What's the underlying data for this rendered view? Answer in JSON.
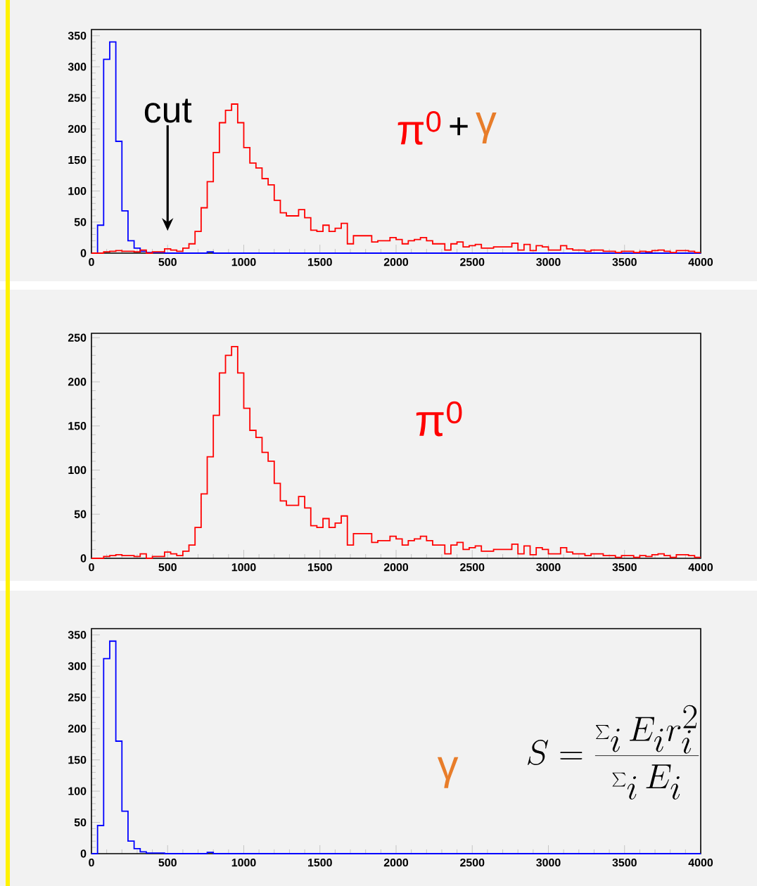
{
  "chart_data": [
    {
      "type": "histogram",
      "bins": [
        0,
        40,
        80,
        120,
        160,
        200,
        240,
        280,
        320,
        360,
        400,
        440,
        480,
        520,
        560,
        600,
        640,
        680,
        720,
        760,
        800,
        840,
        880,
        920,
        960,
        1000,
        1040,
        1080,
        1120,
        1160,
        1200,
        1240,
        1280,
        1320,
        1360,
        1400,
        1440,
        1480,
        1520,
        1560,
        1600,
        1640,
        1680,
        1720,
        1760,
        1800,
        1840,
        1880,
        1920,
        1960,
        2000,
        2040,
        2080,
        2120,
        2160,
        2200,
        2240,
        2280,
        2320,
        2360,
        2400,
        2440,
        2480,
        2520,
        2560,
        2600,
        2640,
        2680,
        2720,
        2760,
        2800,
        2840,
        2880,
        2920,
        2960,
        3000,
        3040,
        3080,
        3120,
        3160,
        3200,
        3240,
        3280,
        3320,
        3360,
        3400,
        3440,
        3480,
        3520,
        3560,
        3600,
        3640,
        3680,
        3720,
        3760,
        3800,
        3840,
        3880,
        3920,
        3960,
        4000
      ],
      "series": [
        {
          "color": "#0000ff",
          "values": [
            0,
            45,
            312,
            340,
            180,
            68,
            20,
            8,
            3,
            1,
            1,
            1,
            0,
            0,
            0,
            0,
            0,
            0,
            0,
            2,
            0,
            0,
            0,
            0,
            0,
            0,
            0,
            0,
            0,
            0,
            0,
            0,
            0,
            0,
            0,
            0,
            0,
            0,
            0,
            0,
            0,
            0,
            0,
            0,
            0,
            0,
            0,
            0,
            0,
            0,
            0,
            0,
            0,
            0,
            0,
            0,
            0,
            0,
            0,
            0,
            0,
            0,
            0,
            0,
            0,
            0,
            0,
            0,
            0,
            0,
            0,
            0,
            0,
            0,
            0,
            0,
            0,
            0,
            0,
            0,
            0,
            0,
            0,
            0,
            0,
            0,
            0,
            0,
            0,
            0,
            0,
            0,
            0,
            0,
            0,
            0,
            0,
            0,
            0,
            0
          ]
        },
        {
          "color": "#ff0000",
          "values": [
            0,
            0,
            2,
            3,
            4,
            3,
            3,
            2,
            5,
            0,
            2,
            2,
            7,
            5,
            3,
            8,
            15,
            35,
            73,
            115,
            162,
            210,
            230,
            240,
            210,
            170,
            145,
            137,
            120,
            110,
            85,
            65,
            60,
            60,
            70,
            57,
            37,
            35,
            45,
            35,
            40,
            48,
            15,
            28,
            28,
            28,
            18,
            20,
            20,
            25,
            22,
            15,
            20,
            22,
            25,
            20,
            15,
            15,
            5,
            15,
            18,
            10,
            12,
            14,
            8,
            8,
            10,
            10,
            10,
            16,
            5,
            14,
            4,
            12,
            10,
            5,
            5,
            12,
            7,
            5,
            5,
            3,
            5,
            5,
            3,
            3,
            1,
            3,
            3,
            1,
            3,
            2,
            4,
            5,
            3,
            1,
            4,
            4,
            3,
            1
          ]
        }
      ],
      "xlim": [
        0,
        4000
      ],
      "xticks": [
        0,
        500,
        1000,
        1500,
        2000,
        2500,
        3000,
        3500,
        4000
      ],
      "ylim": [
        0,
        360
      ],
      "yticks": [
        0,
        50,
        100,
        150,
        200,
        250,
        300,
        350
      ],
      "annotations": [
        "cut",
        "π$^{0}$",
        "+",
        "γ"
      ]
    },
    {
      "type": "histogram",
      "bins": [
        0,
        40,
        80,
        120,
        160,
        200,
        240,
        280,
        320,
        360,
        400,
        440,
        480,
        520,
        560,
        600,
        640,
        680,
        720,
        760,
        800,
        840,
        880,
        920,
        960,
        1000,
        1040,
        1080,
        1120,
        1160,
        1200,
        1240,
        1280,
        1320,
        1360,
        1400,
        1440,
        1480,
        1520,
        1560,
        1600,
        1640,
        1680,
        1720,
        1760,
        1800,
        1840,
        1880,
        1920,
        1960,
        2000,
        2040,
        2080,
        2120,
        2160,
        2200,
        2240,
        2280,
        2320,
        2360,
        2400,
        2440,
        2480,
        2520,
        2560,
        2600,
        2640,
        2680,
        2720,
        2760,
        2800,
        2840,
        2880,
        2920,
        2960,
        3000,
        3040,
        3080,
        3120,
        3160,
        3200,
        3240,
        3280,
        3320,
        3360,
        3400,
        3440,
        3480,
        3520,
        3560,
        3600,
        3640,
        3680,
        3720,
        3760,
        3800,
        3840,
        3880,
        3920,
        3960,
        4000
      ],
      "series": [
        {
          "color": "#ff0000",
          "values": [
            0,
            0,
            2,
            3,
            4,
            3,
            3,
            2,
            5,
            0,
            2,
            2,
            7,
            5,
            3,
            8,
            15,
            35,
            73,
            115,
            162,
            210,
            230,
            240,
            210,
            170,
            145,
            137,
            120,
            110,
            85,
            65,
            60,
            60,
            70,
            57,
            37,
            35,
            45,
            35,
            40,
            48,
            15,
            28,
            28,
            28,
            18,
            20,
            20,
            25,
            22,
            15,
            20,
            22,
            25,
            20,
            15,
            15,
            5,
            15,
            18,
            10,
            12,
            14,
            8,
            8,
            10,
            10,
            10,
            16,
            5,
            14,
            4,
            12,
            10,
            5,
            5,
            12,
            7,
            5,
            5,
            3,
            5,
            5,
            3,
            3,
            1,
            3,
            3,
            1,
            3,
            2,
            4,
            5,
            3,
            1,
            4,
            4,
            3,
            1
          ]
        }
      ],
      "xlim": [
        0,
        4000
      ],
      "xticks": [
        0,
        500,
        1000,
        1500,
        2000,
        2500,
        3000,
        3500,
        4000
      ],
      "ylim": [
        0,
        255
      ],
      "yticks": [
        0,
        50,
        100,
        150,
        200,
        250
      ],
      "annotations": [
        "π$^{0}$"
      ]
    },
    {
      "type": "histogram",
      "bins": [
        0,
        40,
        80,
        120,
        160,
        200,
        240,
        280,
        320,
        360,
        400,
        440,
        480,
        520,
        560,
        600,
        640,
        680,
        720,
        760,
        800,
        840,
        880,
        920,
        960,
        1000,
        1040,
        1080,
        1120,
        1160,
        1200,
        1240,
        1280,
        1320,
        1360,
        1400,
        1440,
        1480,
        1520,
        1560,
        1600,
        1640,
        1680,
        1720,
        1760,
        1800,
        1840,
        1880,
        1920,
        1960,
        2000,
        2040,
        2080,
        2120,
        2160,
        2200,
        2240,
        2280,
        2320,
        2360,
        2400,
        2440,
        2480,
        2520,
        2560,
        2600,
        2640,
        2680,
        2720,
        2760,
        2800,
        2840,
        2880,
        2920,
        2960,
        3000,
        3040,
        3080,
        3120,
        3160,
        3200,
        3240,
        3280,
        3320,
        3360,
        3400,
        3440,
        3480,
        3520,
        3560,
        3600,
        3640,
        3680,
        3720,
        3760,
        3800,
        3840,
        3880,
        3920,
        3960,
        4000
      ],
      "series": [
        {
          "color": "#0000ff",
          "values": [
            0,
            45,
            312,
            340,
            180,
            68,
            20,
            8,
            3,
            1,
            1,
            1,
            0,
            0,
            0,
            0,
            0,
            0,
            0,
            2,
            0,
            0,
            0,
            0,
            0,
            0,
            0,
            0,
            0,
            0,
            0,
            0,
            0,
            0,
            0,
            0,
            0,
            0,
            0,
            0,
            0,
            0,
            0,
            0,
            0,
            0,
            0,
            0,
            0,
            0,
            0,
            0,
            0,
            0,
            0,
            0,
            0,
            0,
            0,
            0,
            0,
            0,
            0,
            0,
            0,
            0,
            0,
            0,
            0,
            0,
            0,
            0,
            0,
            0,
            0,
            0,
            0,
            0,
            0,
            0,
            0,
            0,
            0,
            0,
            0,
            0,
            0,
            0,
            0,
            0,
            0,
            0,
            0,
            0,
            0,
            0,
            0,
            0,
            0,
            0
          ]
        }
      ],
      "xlim": [
        0,
        4000
      ],
      "xticks": [
        0,
        500,
        1000,
        1500,
        2000,
        2500,
        3000,
        3500,
        4000
      ],
      "ylim": [
        0,
        360
      ],
      "yticks": [
        0,
        50,
        100,
        150,
        200,
        250,
        300,
        350
      ],
      "annotations": [
        "S = \\frac{\\sum_i E_i r_i^2}{\\sum_i E_i}",
        "γ"
      ]
    }
  ]
}
